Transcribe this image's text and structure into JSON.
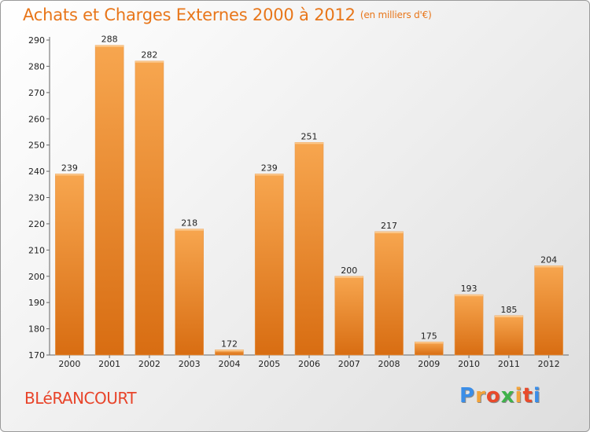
{
  "header": {
    "title": "Achats et Charges Externes 2000 à 2012",
    "unit": "(en milliers d'€)"
  },
  "footer": {
    "city": "BLéRANCOURT",
    "logo_letters": [
      "P",
      "r",
      "o",
      "x",
      "i",
      "t",
      "i"
    ],
    "logo_colors": [
      "#3b8ee8",
      "#f2a33a",
      "#e84a2b",
      "#3fb24a",
      "#f2a33a",
      "#e84a2b",
      "#3b8ee8"
    ]
  },
  "chart_data": {
    "type": "bar",
    "title": "Achats et Charges Externes 2000 à 2012",
    "subtitle": "(en milliers d'€)",
    "categories": [
      "2000",
      "2001",
      "2002",
      "2003",
      "2004",
      "2005",
      "2006",
      "2007",
      "2008",
      "2009",
      "2010",
      "2011",
      "2012"
    ],
    "values": [
      239,
      288,
      282,
      218,
      172,
      239,
      251,
      200,
      217,
      175,
      193,
      185,
      204
    ],
    "ylim": [
      170,
      290
    ],
    "yticks": [
      170,
      180,
      190,
      200,
      210,
      220,
      230,
      240,
      250,
      260,
      270,
      280,
      290
    ],
    "grid": false,
    "bar_color_top": "#f7a64f",
    "bar_color_bottom": "#d86d12"
  }
}
